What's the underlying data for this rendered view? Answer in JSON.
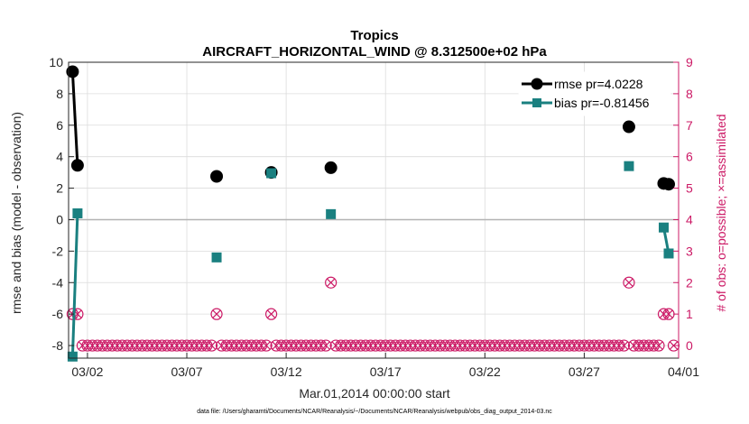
{
  "colors": {
    "rmse": "#000000",
    "bias": "#1a8080",
    "obs": "#cc1a66",
    "zero_line": "#b3b3b3",
    "grid": "#dcdcdc"
  },
  "chart_data": {
    "type": "line",
    "title": "Tropics",
    "subtitle": "AIRCRAFT_HORIZONTAL_WIND @ 8.312500e+02 hPa",
    "xlabel": "Mar.01,2014 00:00:00 start",
    "ylabel": "rmse and bias (model - observation)",
    "y2label": "# of obs: o=possible; ×=assimilated",
    "footnote": "data file: /Users/gharamti/Documents/NCAR/Reanalysis/~/Documents/NCAR/Reanalysis/webpub/obs_diag_output_2014-03.nc",
    "xlim": [
      0.55,
      31.25
    ],
    "ylim": [
      -8.8,
      10
    ],
    "y2lim": [
      -0.4,
      9
    ],
    "x_ticks": [
      1.5,
      6.5,
      11.5,
      16.5,
      21.5,
      26.5,
      31.5
    ],
    "x_tick_labels": [
      "03/02",
      "03/07",
      "03/12",
      "03/17",
      "03/22",
      "03/27",
      "04/01"
    ],
    "y_ticks": [
      -8,
      -6,
      -4,
      -2,
      0,
      2,
      4,
      6,
      8,
      10
    ],
    "y2_ticks": [
      0,
      1,
      2,
      3,
      4,
      5,
      6,
      7,
      8,
      9
    ],
    "legend": [
      {
        "key": "rmse",
        "label": "rmse pr=4.0228"
      },
      {
        "key": "bias",
        "label": "bias pr=-0.81456"
      }
    ],
    "series": [
      {
        "name": "rmse",
        "x": [
          0.75,
          1.0,
          8.0,
          10.75,
          13.75,
          28.75,
          30.5,
          30.75
        ],
        "y": [
          9.4,
          3.45,
          2.75,
          3.0,
          3.3,
          5.9,
          2.3,
          2.25
        ],
        "connect": [
          [
            0,
            1
          ],
          [
            6,
            7
          ]
        ]
      },
      {
        "name": "bias",
        "x": [
          0.75,
          1.0,
          8.0,
          10.75,
          13.75,
          28.75,
          30.5,
          30.75
        ],
        "y": [
          -8.7,
          0.4,
          -2.4,
          2.95,
          0.35,
          3.4,
          -0.5,
          -2.15
        ],
        "connect": [
          [
            0,
            1
          ],
          [
            6,
            7
          ]
        ]
      }
    ],
    "obs_possible": {
      "x": [
        0.75,
        1.0,
        8.0,
        10.75,
        13.75,
        28.75,
        30.5,
        30.75
      ],
      "y": [
        1,
        1,
        1,
        1,
        2,
        2,
        1,
        1
      ]
    },
    "obs_zero_x_range": [
      1.25,
      31.0
    ],
    "obs_zero_step": 0.25
  }
}
